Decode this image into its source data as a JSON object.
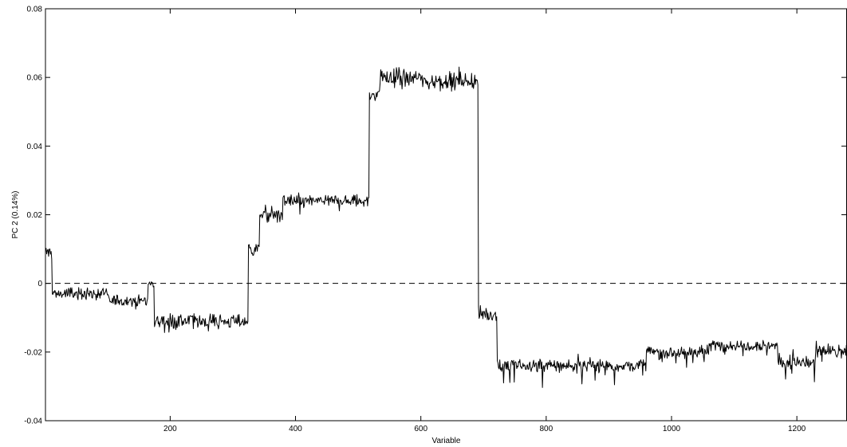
{
  "chart_data": {
    "type": "line",
    "xlabel": "Variable",
    "ylabel": "PC 2 (0.14%)",
    "xlim": [
      1,
      1280
    ],
    "ylim": [
      -0.04,
      0.08
    ],
    "xticks": [
      200,
      400,
      600,
      800,
      1000,
      1200
    ],
    "xtick_labels": [
      "200",
      "400",
      "600",
      "800",
      "1000",
      "1200"
    ],
    "yticks": [
      -0.04,
      -0.02,
      0,
      0.02,
      0.04,
      0.06,
      0.08
    ],
    "ytick_labels": [
      "-0.04",
      "-0.02",
      "0",
      "0.02",
      "0.04",
      "0.06",
      "0.08"
    ],
    "grid": false,
    "reference_line": {
      "y": 0,
      "style": "dashed"
    },
    "series": [
      {
        "color": "#000000",
        "segments": [
          {
            "x_start": 1,
            "x_end": 12,
            "level": 0.009,
            "noise": 0.0015,
            "spike": 0.002
          },
          {
            "x_start": 12,
            "x_end": 100,
            "level": -0.003,
            "noise": 0.0012,
            "spike": 0.002
          },
          {
            "x_start": 100,
            "x_end": 165,
            "level": -0.005,
            "noise": 0.0012,
            "spike": 0.002
          },
          {
            "x_start": 165,
            "x_end": 175,
            "level": 0.0,
            "noise": 0.001,
            "spike": 0.001
          },
          {
            "x_start": 175,
            "x_end": 325,
            "level": -0.011,
            "noise": 0.0014,
            "spike": 0.004
          },
          {
            "x_start": 325,
            "x_end": 343,
            "level": 0.01,
            "noise": 0.0015,
            "spike": 0.004
          },
          {
            "x_start": 343,
            "x_end": 380,
            "level": 0.02,
            "noise": 0.0014,
            "spike": 0.004
          },
          {
            "x_start": 380,
            "x_end": 518,
            "level": 0.024,
            "noise": 0.0012,
            "spike": 0.005
          },
          {
            "x_start": 518,
            "x_end": 535,
            "level": 0.055,
            "noise": 0.0015,
            "spike": 0.004
          },
          {
            "x_start": 535,
            "x_end": 600,
            "level": 0.06,
            "noise": 0.0018,
            "spike": 0.007
          },
          {
            "x_start": 600,
            "x_end": 692,
            "level": 0.059,
            "noise": 0.0015,
            "spike": 0.004
          },
          {
            "x_start": 692,
            "x_end": 722,
            "level": -0.009,
            "noise": 0.0014,
            "spike": 0.003
          },
          {
            "x_start": 722,
            "x_end": 960,
            "level": -0.024,
            "noise": 0.0013,
            "spike": 0.006
          },
          {
            "x_start": 960,
            "x_end": 1060,
            "level": -0.02,
            "noise": 0.0012,
            "spike": 0.004
          },
          {
            "x_start": 1060,
            "x_end": 1170,
            "level": -0.018,
            "noise": 0.0011,
            "spike": 0.004
          },
          {
            "x_start": 1170,
            "x_end": 1230,
            "level": -0.023,
            "noise": 0.0014,
            "spike": 0.006
          },
          {
            "x_start": 1230,
            "x_end": 1280,
            "level": -0.02,
            "noise": 0.0013,
            "spike": 0.004
          }
        ]
      }
    ]
  }
}
